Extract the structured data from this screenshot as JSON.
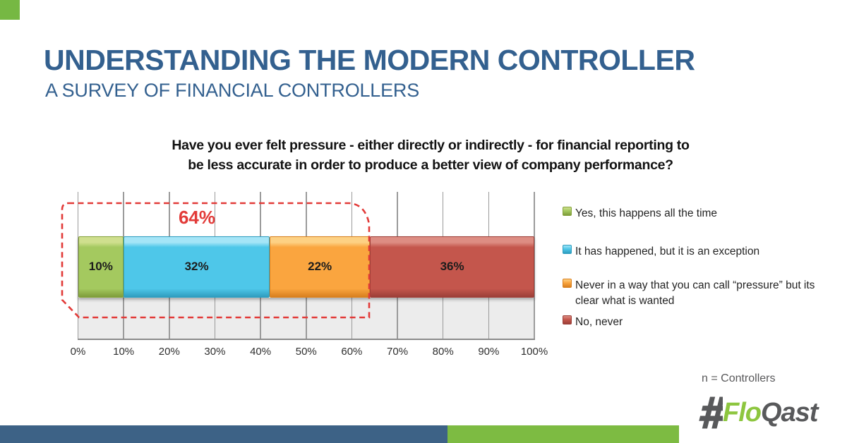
{
  "page": {
    "title": "UNDERSTANDING THE MODERN CONTROLLER",
    "subtitle": "A SURVEY OF FINANCIAL CONTROLLERS",
    "title_color": "#33608f",
    "accent_square_color": "#76b843",
    "sample_note": "n = Controllers"
  },
  "chart_data": {
    "type": "bar",
    "orientation": "horizontal",
    "stacked": true,
    "title_line1": "Have you ever felt pressure - either directly or indirectly - for financial reporting to",
    "title_line2": "be less accurate in order to produce a better view of company performance?",
    "xlim": [
      0,
      100
    ],
    "x_ticks": [
      "0%",
      "10%",
      "20%",
      "30%",
      "40%",
      "50%",
      "60%",
      "70%",
      "80%",
      "90%",
      "100%"
    ],
    "grid": true,
    "legend_position": "right",
    "series": [
      {
        "name": "Yes, this happens all the time",
        "value": 10,
        "label": "10%",
        "color": "#a4c95f",
        "light": "#cfdf8e",
        "dark": "#7e9c3a",
        "border": "#85a23c"
      },
      {
        "name": "It has happened, but it is an exception",
        "value": 32,
        "label": "32%",
        "color": "#4ec7e9",
        "light": "#a5e5f7",
        "dark": "#2f9cbe",
        "border": "#2d9dbf"
      },
      {
        "name": "Never in a way that you can call “pressure” but its clear what is wanted",
        "value": 22,
        "label": "22%",
        "color": "#faa53f",
        "light": "#fdd184",
        "dark": "#d87f1e",
        "border": "#d87f1e"
      },
      {
        "name": "No, never",
        "value": 36,
        "label": "36%",
        "color": "#c4564c",
        "light": "#dd8d83",
        "dark": "#9c3f38",
        "border": "#9c3f38"
      }
    ],
    "annotation": {
      "label": "64%",
      "covers_values": [
        10,
        32,
        22
      ],
      "total": 64,
      "color": "#e23a38"
    }
  },
  "legend": {
    "items": [
      "Yes, this happens all the time",
      "It has happened, but it is an exception",
      "Never in a way that you can call “pressure” but its clear what is wanted",
      "No, never"
    ]
  },
  "logo": {
    "flo": "Flo",
    "qast": "Qast",
    "green": "#8dc63f",
    "gray": "#58595b"
  },
  "footer": {
    "blue_color": "#3d6286",
    "green_color": "#7dbb42"
  }
}
